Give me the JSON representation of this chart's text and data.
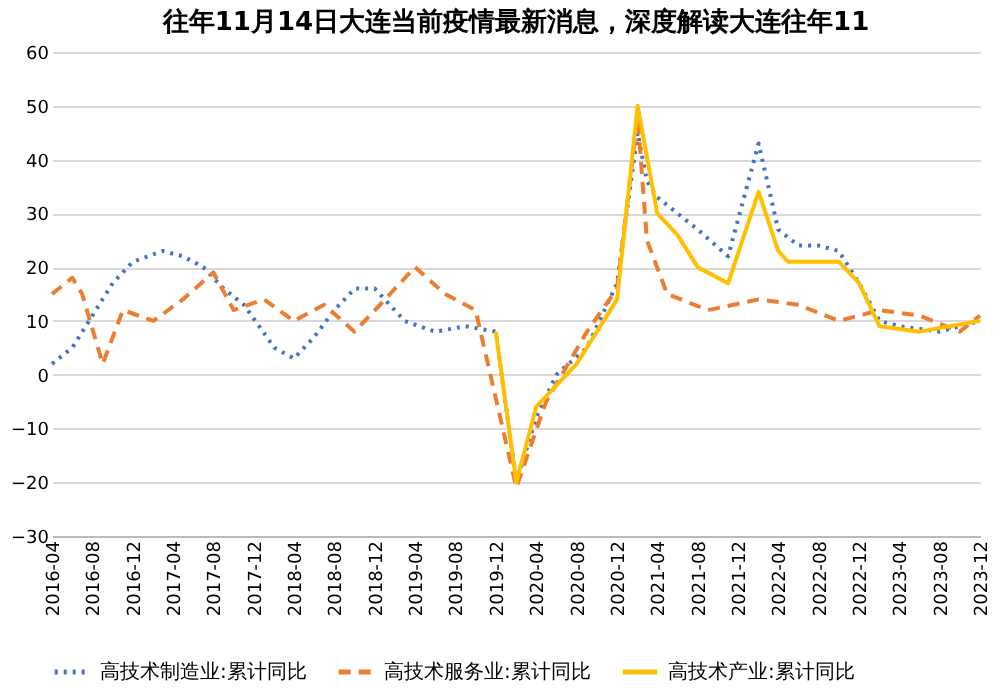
{
  "chart_data": {
    "type": "line",
    "title": "往年11月14日大连当前疫情最新消息，深度解读大连往年11",
    "ylim": [
      -30,
      60
    ],
    "yticks": [
      -30,
      -20,
      -10,
      0,
      10,
      20,
      30,
      40,
      50,
      60
    ],
    "grid": "y",
    "legend": "bottom",
    "xlim": [
      "2016-04",
      "2023-12"
    ],
    "xticks": [
      "2016-04",
      "2016-08",
      "2016-12",
      "2017-04",
      "2017-08",
      "2017-12",
      "2018-04",
      "2018-08",
      "2018-12",
      "2019-04",
      "2019-08",
      "2019-12",
      "2020-04",
      "2020-08",
      "2020-12",
      "2021-04",
      "2021-08",
      "2021-12",
      "2022-04",
      "2022-08",
      "2022-12",
      "2023-04",
      "2023-08",
      "2023-12"
    ],
    "series": [
      {
        "name": "高技术制造业:累计同比",
        "color": "#4472c4",
        "line_style": "dotted",
        "x": [
          "2016-04",
          "2016-06",
          "2016-08",
          "2016-10",
          "2016-12",
          "2017-03",
          "2017-05",
          "2017-07",
          "2017-09",
          "2017-11",
          "2018-02",
          "2018-04",
          "2018-06",
          "2018-08",
          "2018-10",
          "2018-12",
          "2019-03",
          "2019-06",
          "2019-09",
          "2019-12",
          "2020-02",
          "2020-04",
          "2020-06",
          "2020-09",
          "2020-12",
          "2021-02",
          "2021-03",
          "2021-04",
          "2021-06",
          "2021-08",
          "2021-11",
          "2022-02",
          "2022-04",
          "2022-06",
          "2022-08",
          "2022-10",
          "2022-12",
          "2023-02",
          "2023-04",
          "2023-08",
          "2023-12"
        ],
        "values": [
          2,
          5,
          11,
          17,
          21,
          23,
          22,
          20,
          16,
          13,
          5,
          3,
          7,
          12,
          16,
          16,
          10,
          8,
          9,
          8,
          -20,
          -8,
          0,
          5,
          17,
          45,
          36,
          33,
          30,
          27,
          22,
          43,
          27,
          24,
          24,
          23,
          17,
          10,
          9,
          8,
          10
        ]
      },
      {
        "name": "高技术服务业:累计同比",
        "color": "#ed7d31",
        "line_style": "dashed",
        "x": [
          "2016-04",
          "2016-06",
          "2016-07",
          "2016-09",
          "2016-11",
          "2017-02",
          "2017-05",
          "2017-08",
          "2017-10",
          "2018-01",
          "2018-04",
          "2018-07",
          "2018-10",
          "2019-01",
          "2019-04",
          "2019-07",
          "2019-10",
          "2020-02",
          "2020-05",
          "2020-09",
          "2020-12",
          "2021-02",
          "2021-03",
          "2021-05",
          "2021-09",
          "2022-02",
          "2022-06",
          "2022-10",
          "2023-02",
          "2023-06",
          "2023-10",
          "2023-12"
        ],
        "values": [
          15,
          18,
          15,
          2,
          12,
          10,
          14,
          19,
          12,
          14,
          10,
          13,
          8,
          14,
          20,
          15,
          12,
          -21,
          -5,
          8,
          16,
          48,
          25,
          15,
          12,
          14,
          13,
          10,
          12,
          11,
          8,
          11
        ]
      },
      {
        "name": "高技术产业:累计同比",
        "color": "#ffc000",
        "line_style": "solid",
        "x": [
          "2019-12",
          "2020-02",
          "2020-04",
          "2020-08",
          "2020-12",
          "2021-02",
          "2021-04",
          "2021-06",
          "2021-08",
          "2021-11",
          "2022-02",
          "2022-04",
          "2022-05",
          "2022-10",
          "2022-12",
          "2023-02",
          "2023-06",
          "2023-12"
        ],
        "values": [
          8,
          -20,
          -6,
          2,
          14,
          50,
          30,
          26,
          20,
          17,
          34,
          23,
          21,
          21,
          17,
          9,
          8,
          10
        ]
      }
    ]
  }
}
